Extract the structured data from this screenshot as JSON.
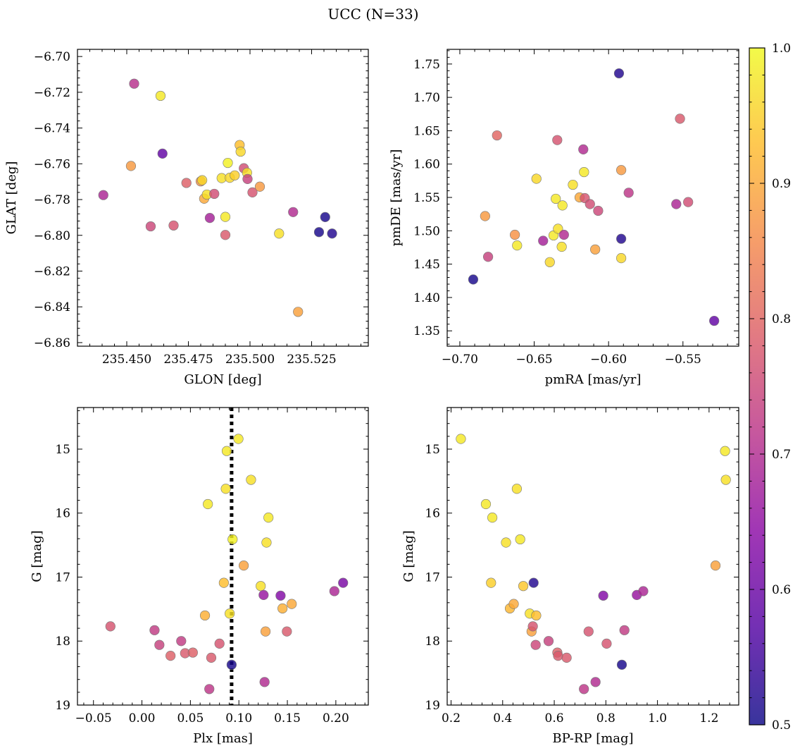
{
  "figure": {
    "title": "UCC (N=33)",
    "colorbar": {
      "min": 0.5,
      "max": 1.0,
      "ticks": [
        "0.5",
        "0.6",
        "0.7",
        "0.8",
        "0.9",
        "1.0"
      ],
      "colormap": "plasma"
    }
  },
  "chart_data": [
    {
      "type": "scatter",
      "xlabel": "GLON [deg]",
      "ylabel": "GLAT [deg]",
      "xlim": [
        235.43,
        235.548
      ],
      "ylim": [
        -6.862,
        -6.696
      ],
      "xticks": [
        235.45,
        235.475,
        235.5,
        235.525
      ],
      "xtick_labels": [
        "235.450",
        "235.475",
        "235.500",
        "235.525"
      ],
      "yticks": [
        -6.86,
        -6.84,
        -6.82,
        -6.8,
        -6.78,
        -6.76,
        -6.74,
        -6.72,
        -6.7
      ],
      "ytick_labels": [
        "−6.86",
        "−6.84",
        "−6.82",
        "−6.80",
        "−6.78",
        "−6.76",
        "−6.74",
        "−6.72",
        "−6.70"
      ],
      "points": [
        {
          "x": 235.4405,
          "y": -6.7775,
          "c": 0.69
        },
        {
          "x": 235.453,
          "y": -6.7152,
          "c": 0.71
        },
        {
          "x": 235.4637,
          "y": -6.722,
          "c": 0.98
        },
        {
          "x": 235.4645,
          "y": -6.7543,
          "c": 0.59
        },
        {
          "x": 235.4517,
          "y": -6.7612,
          "c": 0.88
        },
        {
          "x": 235.4597,
          "y": -6.795,
          "c": 0.75
        },
        {
          "x": 235.469,
          "y": -6.7945,
          "c": 0.77
        },
        {
          "x": 235.4742,
          "y": -6.7707,
          "c": 0.79
        },
        {
          "x": 235.48,
          "y": -6.7698,
          "c": 0.87
        },
        {
          "x": 235.4806,
          "y": -6.7692,
          "c": 0.96
        },
        {
          "x": 235.4814,
          "y": -6.7795,
          "c": 0.9
        },
        {
          "x": 235.4825,
          "y": -6.7772,
          "c": 0.97
        },
        {
          "x": 235.4855,
          "y": -6.7768,
          "c": 0.76
        },
        {
          "x": 235.4837,
          "y": -6.7903,
          "c": 0.68
        },
        {
          "x": 235.4885,
          "y": -6.768,
          "c": 0.97
        },
        {
          "x": 235.49,
          "y": -6.7897,
          "c": 0.98
        },
        {
          "x": 235.49,
          "y": -6.7998,
          "c": 0.78
        },
        {
          "x": 235.491,
          "y": -6.7595,
          "c": 0.99
        },
        {
          "x": 235.4918,
          "y": -6.7678,
          "c": 0.96
        },
        {
          "x": 235.4938,
          "y": -6.7665,
          "c": 0.95
        },
        {
          "x": 235.4958,
          "y": -6.7495,
          "c": 0.93
        },
        {
          "x": 235.4962,
          "y": -6.7532,
          "c": 0.96
        },
        {
          "x": 235.4975,
          "y": -6.7625,
          "c": 0.76
        },
        {
          "x": 235.4988,
          "y": -6.765,
          "c": 0.97
        },
        {
          "x": 235.499,
          "y": -6.7685,
          "c": 0.74
        },
        {
          "x": 235.501,
          "y": -6.776,
          "c": 0.77
        },
        {
          "x": 235.504,
          "y": -6.7728,
          "c": 0.88
        },
        {
          "x": 235.5118,
          "y": -6.799,
          "c": 0.97
        },
        {
          "x": 235.5175,
          "y": -6.787,
          "c": 0.7
        },
        {
          "x": 235.5195,
          "y": -6.8428,
          "c": 0.89
        },
        {
          "x": 235.528,
          "y": -6.7982,
          "c": 0.51
        },
        {
          "x": 235.5305,
          "y": -6.7898,
          "c": 0.51
        },
        {
          "x": 235.5333,
          "y": -6.799,
          "c": 0.52
        }
      ]
    },
    {
      "type": "scatter",
      "xlabel": "pmRA [mas/yr]",
      "ylabel": "pmDE [mas/yr]",
      "xlim": [
        -0.7085,
        -0.5125
      ],
      "ylim": [
        1.327,
        1.772
      ],
      "xticks": [
        -0.7,
        -0.65,
        -0.6,
        -0.55
      ],
      "xtick_labels": [
        "−0.70",
        "−0.65",
        "−0.60",
        "−0.55"
      ],
      "yticks": [
        1.35,
        1.4,
        1.45,
        1.5,
        1.55,
        1.6,
        1.65,
        1.7,
        1.75
      ],
      "ytick_labels": [
        "1.35",
        "1.40",
        "1.45",
        "1.50",
        "1.55",
        "1.60",
        "1.65",
        "1.70",
        "1.75"
      ],
      "points": [
        {
          "x": -0.691,
          "y": 1.427,
          "c": 0.51
        },
        {
          "x": -0.683,
          "y": 1.522,
          "c": 0.88
        },
        {
          "x": -0.681,
          "y": 1.461,
          "c": 0.74
        },
        {
          "x": -0.675,
          "y": 1.643,
          "c": 0.8
        },
        {
          "x": -0.663,
          "y": 1.494,
          "c": 0.87
        },
        {
          "x": -0.6615,
          "y": 1.478,
          "c": 0.98
        },
        {
          "x": -0.6485,
          "y": 1.578,
          "c": 0.96
        },
        {
          "x": -0.644,
          "y": 1.485,
          "c": 0.68
        },
        {
          "x": -0.6395,
          "y": 1.453,
          "c": 0.96
        },
        {
          "x": -0.637,
          "y": 1.493,
          "c": 0.98
        },
        {
          "x": -0.6355,
          "y": 1.548,
          "c": 0.98
        },
        {
          "x": -0.6345,
          "y": 1.636,
          "c": 0.77
        },
        {
          "x": -0.634,
          "y": 1.503,
          "c": 0.97
        },
        {
          "x": -0.6315,
          "y": 1.476,
          "c": 0.97
        },
        {
          "x": -0.631,
          "y": 1.538,
          "c": 0.98
        },
        {
          "x": -0.63,
          "y": 1.494,
          "c": 0.7
        },
        {
          "x": -0.624,
          "y": 1.569,
          "c": 0.97
        },
        {
          "x": -0.6195,
          "y": 1.55,
          "c": 0.9
        },
        {
          "x": -0.6165,
          "y": 1.588,
          "c": 0.98
        },
        {
          "x": -0.617,
          "y": 1.622,
          "c": 0.7
        },
        {
          "x": -0.616,
          "y": 1.549,
          "c": 0.77
        },
        {
          "x": -0.6125,
          "y": 1.54,
          "c": 0.76
        },
        {
          "x": -0.609,
          "y": 1.472,
          "c": 0.89
        },
        {
          "x": -0.607,
          "y": 1.53,
          "c": 0.75
        },
        {
          "x": -0.593,
          "y": 1.736,
          "c": 0.52
        },
        {
          "x": -0.5915,
          "y": 1.591,
          "c": 0.88
        },
        {
          "x": -0.5915,
          "y": 1.459,
          "c": 0.96
        },
        {
          "x": -0.5915,
          "y": 1.488,
          "c": 0.52
        },
        {
          "x": -0.5865,
          "y": 1.557,
          "c": 0.72
        },
        {
          "x": -0.5545,
          "y": 1.54,
          "c": 0.69
        },
        {
          "x": -0.552,
          "y": 1.668,
          "c": 0.78
        },
        {
          "x": -0.5465,
          "y": 1.543,
          "c": 0.76
        },
        {
          "x": -0.529,
          "y": 1.365,
          "c": 0.59
        }
      ]
    },
    {
      "type": "scatter",
      "xlabel": "Plx [mas]",
      "ylabel": "G [mag]",
      "y_inverted": true,
      "xlim": [
        -0.0665,
        0.2335
      ],
      "ylim": [
        19.0,
        14.35
      ],
      "xticks": [
        -0.05,
        0.0,
        0.05,
        0.1,
        0.15,
        0.2
      ],
      "xtick_labels": [
        "−0.05",
        "0.00",
        "0.05",
        "0.10",
        "0.15",
        "0.20"
      ],
      "yticks": [
        15,
        16,
        17,
        18,
        19
      ],
      "ytick_labels": [
        "15",
        "16",
        "17",
        "18",
        "19"
      ],
      "vline": {
        "x": 0.0925,
        "style": "dotted"
      },
      "points": [
        {
          "x": -0.0325,
          "y": 17.77,
          "c": 0.77
        },
        {
          "x": 0.013,
          "y": 17.83,
          "c": 0.73
        },
        {
          "x": 0.018,
          "y": 18.06,
          "c": 0.74
        },
        {
          "x": 0.0295,
          "y": 18.23,
          "c": 0.79
        },
        {
          "x": 0.0405,
          "y": 18.0,
          "c": 0.73
        },
        {
          "x": 0.0445,
          "y": 18.19,
          "c": 0.78
        },
        {
          "x": 0.0525,
          "y": 18.18,
          "c": 0.79
        },
        {
          "x": 0.065,
          "y": 17.6,
          "c": 0.91
        },
        {
          "x": 0.068,
          "y": 15.86,
          "c": 0.98
        },
        {
          "x": 0.0695,
          "y": 18.75,
          "c": 0.72
        },
        {
          "x": 0.0715,
          "y": 18.26,
          "c": 0.78
        },
        {
          "x": 0.08,
          "y": 18.04,
          "c": 0.77
        },
        {
          "x": 0.0845,
          "y": 17.09,
          "c": 0.93
        },
        {
          "x": 0.0865,
          "y": 15.62,
          "c": 0.97
        },
        {
          "x": 0.0875,
          "y": 15.03,
          "c": 0.98
        },
        {
          "x": 0.0905,
          "y": 17.57,
          "c": 0.97
        },
        {
          "x": 0.0925,
          "y": 18.37,
          "c": 0.51
        },
        {
          "x": 0.0935,
          "y": 16.41,
          "c": 0.99
        },
        {
          "x": 0.0995,
          "y": 14.84,
          "c": 0.98
        },
        {
          "x": 0.105,
          "y": 16.82,
          "c": 0.89
        },
        {
          "x": 0.1125,
          "y": 15.48,
          "c": 0.97
        },
        {
          "x": 0.1225,
          "y": 17.14,
          "c": 0.97
        },
        {
          "x": 0.1255,
          "y": 17.28,
          "c": 0.66
        },
        {
          "x": 0.1265,
          "y": 18.64,
          "c": 0.7
        },
        {
          "x": 0.1275,
          "y": 17.85,
          "c": 0.89
        },
        {
          "x": 0.1285,
          "y": 16.46,
          "c": 0.97
        },
        {
          "x": 0.1305,
          "y": 16.07,
          "c": 0.98
        },
        {
          "x": 0.143,
          "y": 17.29,
          "c": 0.63
        },
        {
          "x": 0.145,
          "y": 17.49,
          "c": 0.91
        },
        {
          "x": 0.1495,
          "y": 17.85,
          "c": 0.78
        },
        {
          "x": 0.1545,
          "y": 17.42,
          "c": 0.9
        },
        {
          "x": 0.1985,
          "y": 17.22,
          "c": 0.69
        },
        {
          "x": 0.2075,
          "y": 17.09,
          "c": 0.62
        }
      ]
    },
    {
      "type": "scatter",
      "xlabel": "BP-RP [mag]",
      "ylabel": "G [mag]",
      "y_inverted": true,
      "xlim": [
        0.185,
        1.315
      ],
      "ylim": [
        19.0,
        14.35
      ],
      "xticks": [
        0.2,
        0.4,
        0.6,
        0.8,
        1.0,
        1.2
      ],
      "xtick_labels": [
        "0.2",
        "0.4",
        "0.6",
        "0.8",
        "1.0",
        "1.2"
      ],
      "yticks": [
        15,
        16,
        17,
        18,
        19
      ],
      "ytick_labels": [
        "15",
        "16",
        "17",
        "18",
        "19"
      ],
      "points": [
        {
          "x": 0.238,
          "y": 14.84,
          "c": 0.98
        },
        {
          "x": 0.335,
          "y": 15.86,
          "c": 0.98
        },
        {
          "x": 0.355,
          "y": 17.09,
          "c": 0.95
        },
        {
          "x": 0.36,
          "y": 16.07,
          "c": 0.98
        },
        {
          "x": 0.413,
          "y": 16.46,
          "c": 0.97
        },
        {
          "x": 0.428,
          "y": 17.49,
          "c": 0.92
        },
        {
          "x": 0.443,
          "y": 17.42,
          "c": 0.9
        },
        {
          "x": 0.455,
          "y": 15.62,
          "c": 0.97
        },
        {
          "x": 0.468,
          "y": 16.41,
          "c": 0.98
        },
        {
          "x": 0.48,
          "y": 17.14,
          "c": 0.94
        },
        {
          "x": 0.505,
          "y": 17.57,
          "c": 0.97
        },
        {
          "x": 0.512,
          "y": 17.85,
          "c": 0.89
        },
        {
          "x": 0.517,
          "y": 17.77,
          "c": 0.77
        },
        {
          "x": 0.52,
          "y": 17.09,
          "c": 0.52
        },
        {
          "x": 0.528,
          "y": 18.06,
          "c": 0.75
        },
        {
          "x": 0.53,
          "y": 17.6,
          "c": 0.93
        },
        {
          "x": 0.578,
          "y": 18.0,
          "c": 0.74
        },
        {
          "x": 0.612,
          "y": 18.18,
          "c": 0.79
        },
        {
          "x": 0.615,
          "y": 18.23,
          "c": 0.78
        },
        {
          "x": 0.648,
          "y": 18.26,
          "c": 0.78
        },
        {
          "x": 0.715,
          "y": 18.75,
          "c": 0.72
        },
        {
          "x": 0.733,
          "y": 17.85,
          "c": 0.77
        },
        {
          "x": 0.76,
          "y": 18.64,
          "c": 0.7
        },
        {
          "x": 0.79,
          "y": 17.29,
          "c": 0.63
        },
        {
          "x": 0.803,
          "y": 18.04,
          "c": 0.77
        },
        {
          "x": 0.862,
          "y": 18.37,
          "c": 0.51
        },
        {
          "x": 0.872,
          "y": 17.83,
          "c": 0.73
        },
        {
          "x": 0.92,
          "y": 17.28,
          "c": 0.66
        },
        {
          "x": 0.945,
          "y": 17.22,
          "c": 0.69
        },
        {
          "x": 1.225,
          "y": 16.82,
          "c": 0.89
        },
        {
          "x": 1.262,
          "y": 15.03,
          "c": 0.98
        },
        {
          "x": 1.265,
          "y": 15.48,
          "c": 0.97
        }
      ]
    }
  ]
}
